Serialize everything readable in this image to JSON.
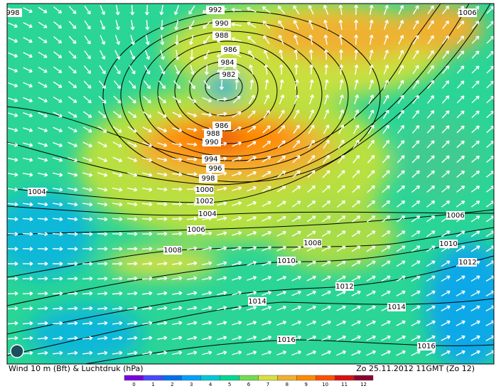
{
  "map": {
    "isobar_labels": [
      "992",
      "990",
      "988",
      "986",
      "984",
      "982",
      "986",
      "988",
      "990",
      "994",
      "996",
      "998",
      "1000",
      "1002",
      "1004",
      "1004",
      "1006",
      "1008",
      "1008",
      "1010",
      "1012",
      "1014",
      "1014",
      "1016",
      "1016",
      "1006",
      "1010",
      "1012",
      "1006",
      "998"
    ],
    "footer_left": "Wind 10 m (Bft) & Luchtdruk (hPa)",
    "footer_right": "Zo 25.11.2012 11GMT (Zo 12)",
    "scale": {
      "labels": [
        "0",
        "1",
        "2",
        "3",
        "4",
        "5",
        "6",
        "7",
        "8",
        "9",
        "10",
        "11",
        "12"
      ],
      "colors": [
        "#7a00e0",
        "#4848ff",
        "#0070f0",
        "#00a0ff",
        "#00c8d8",
        "#00d890",
        "#70dc50",
        "#d8e040",
        "#f0b030",
        "#ff8a00",
        "#ff5000",
        "#d81010",
        "#8c0030"
      ]
    }
  }
}
